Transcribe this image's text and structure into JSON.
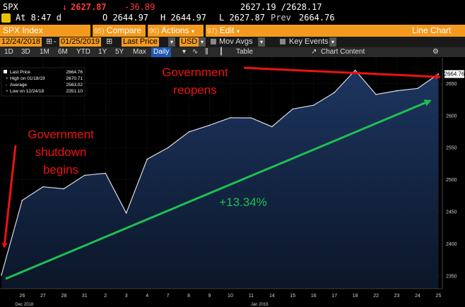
{
  "quote": {
    "ticker": "SPX",
    "last": "2627.87",
    "change": "-36.89",
    "bid_ask": "2627.19 /2628.17"
  },
  "details": {
    "time": "At 8:47 d",
    "open": "O 2644.97",
    "high": "H 2644.97",
    "low": "L 2627.87",
    "prev_label": "Prev",
    "prev_value": "2664.76"
  },
  "toolbar": {
    "title": "SPX Index",
    "compare_code": "95)",
    "compare_label": "Compare",
    "actions_code": "96)",
    "actions_label": "Actions",
    "edit_code": "97)",
    "edit_label": "Edit",
    "chart_type": "Line Chart"
  },
  "params": {
    "start_date": "12/24/2018",
    "end_date": "01/25/2019",
    "field": "Last Price",
    "currency": "USD",
    "mov_avgs": "Mov Avgs",
    "key_events": "Key Events"
  },
  "periods": {
    "items": [
      "1D",
      "3D",
      "1M",
      "6M",
      "YTD",
      "1Y",
      "5Y",
      "Max"
    ],
    "frequency": "Daily",
    "table": "Table",
    "chart_content": "Chart Content"
  },
  "colors": {
    "line": "#d9dde3",
    "area_top": "#1d3560",
    "area_bottom": "#0b1628",
    "annotation": "#ee1111",
    "trend": "#1fbf52"
  },
  "chart_data": {
    "type": "area",
    "series": [
      {
        "values": [
          2351.1,
          2467.7,
          2488.83,
          2485.74,
          2506.85,
          2510.03,
          2447.89,
          2531.94,
          2549.69,
          2574.41,
          2584.96,
          2596.64,
          2596.26,
          2582.61,
          2610.3,
          2616.1,
          2635.96,
          2670.71,
          2632.9,
          2638.7,
          2642.33,
          2664.76
        ]
      }
    ],
    "x_ticks": [
      "26",
      "27",
      "28",
      "31",
      "2",
      "3",
      "4",
      "7",
      "8",
      "9",
      "10",
      "11",
      "14",
      "15",
      "16",
      "17",
      "18",
      "22",
      "23",
      "24",
      "25"
    ],
    "x_group_labels": [
      "Dec 2018",
      "Jan 2019"
    ],
    "y_ticks": [
      "2350",
      "2400",
      "2450",
      "2500",
      "2550",
      "2600",
      "2650"
    ],
    "ylim": [
      2330,
      2690
    ],
    "grid": true,
    "last_value_label": "2664.76",
    "legend": {
      "placement": "top-left",
      "entries": [
        {
          "label": "Last Price",
          "value": "2664.76"
        },
        {
          "label": "High on 01/18/19",
          "value": "2670.71"
        },
        {
          "label": "Average",
          "value": "2563.02"
        },
        {
          "label": "Low on 12/24/18",
          "value": "2351.10"
        }
      ]
    },
    "annotations": {
      "shutdown": [
        "Government",
        "shutdown",
        "begins"
      ],
      "reopens": [
        "Government",
        "reopens"
      ],
      "change": "+13.34%"
    }
  }
}
